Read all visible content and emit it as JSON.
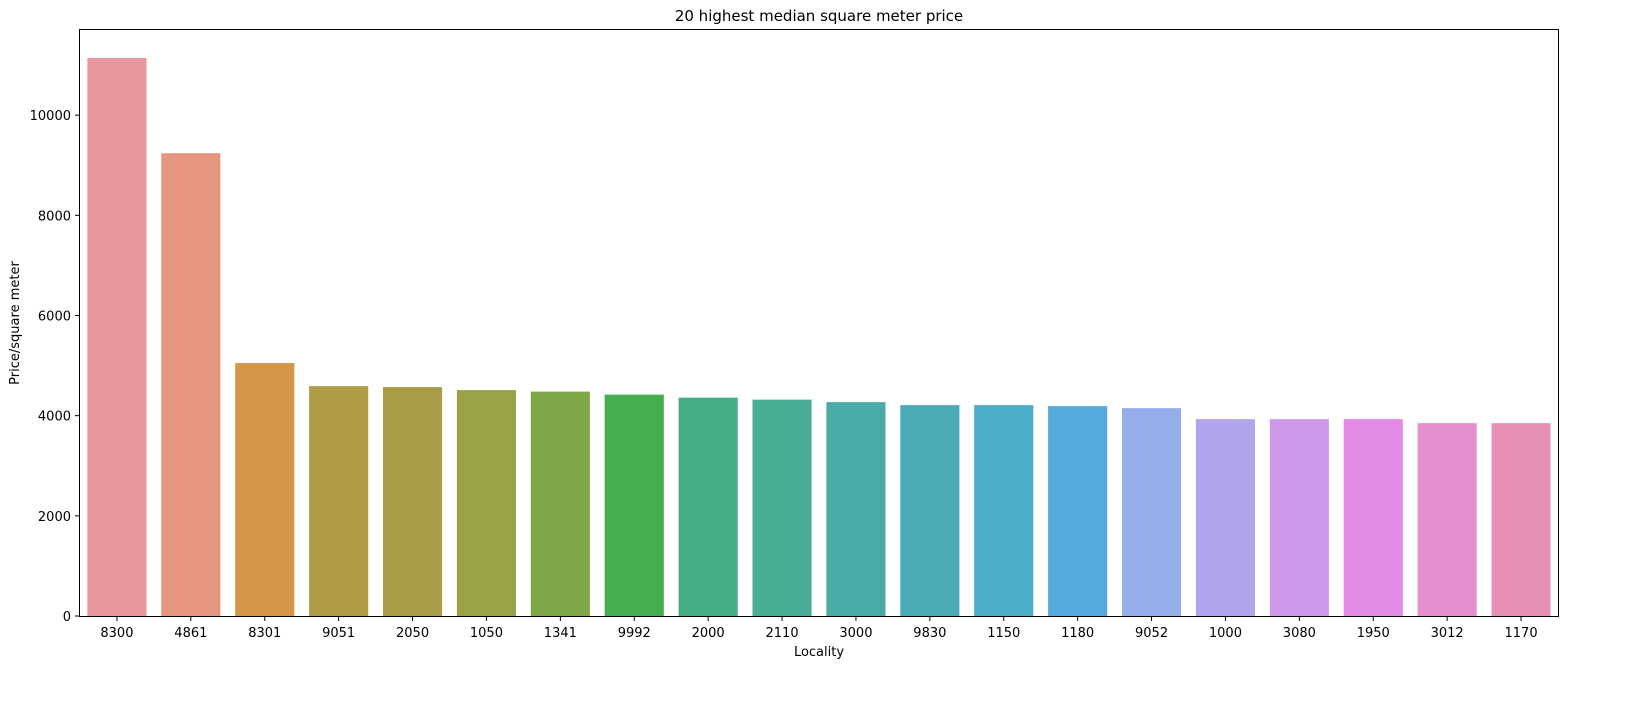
{
  "chart_data": {
    "type": "bar",
    "title": "20 highest median square meter price",
    "xlabel": "Locality",
    "ylabel": "Price/square meter",
    "categories": [
      "8300",
      "4861",
      "8301",
      "9051",
      "2050",
      "1050",
      "1341",
      "9992",
      "2000",
      "2110",
      "3000",
      "9830",
      "1150",
      "1180",
      "9052",
      "1000",
      "3080",
      "1950",
      "3012",
      "1170"
    ],
    "values": [
      11140,
      9240,
      5050,
      4590,
      4570,
      4510,
      4480,
      4420,
      4360,
      4320,
      4270,
      4210,
      4210,
      4190,
      4150,
      3930,
      3930,
      3930,
      3850,
      3850
    ],
    "colors": [
      "#e8979f",
      "#e6967f",
      "#d59549",
      "#b09c46",
      "#a89c47",
      "#99a346",
      "#7ea847",
      "#46ae4f",
      "#45ac83",
      "#49ad96",
      "#4aaaa6",
      "#4aabb6",
      "#4baec7",
      "#56a9dc",
      "#95adea",
      "#b1a4ea",
      "#cd99e8",
      "#e38ae4",
      "#e78ecf",
      "#e690b6"
    ],
    "ylim": [
      0,
      11700
    ],
    "yticks": [
      0,
      2000,
      4000,
      6000,
      8000,
      10000
    ],
    "grid": false,
    "legend": "none"
  }
}
